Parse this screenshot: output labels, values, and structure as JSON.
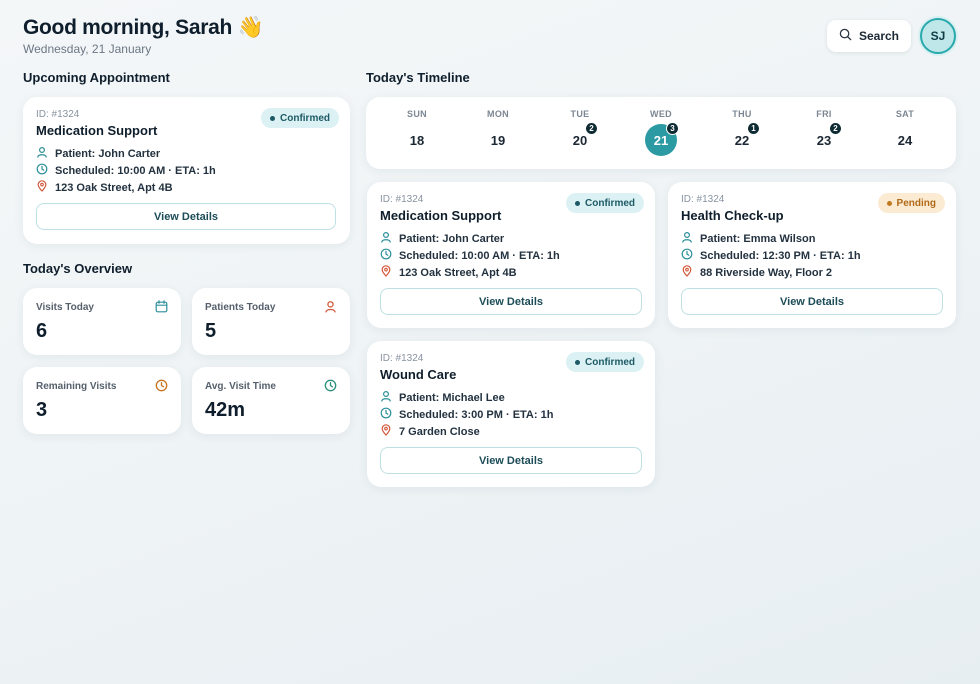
{
  "header": {
    "greeting": "Good morning, Sarah 👋",
    "date": "Wednesday, 21 January",
    "search_label": "Search",
    "avatar_initials": "SJ"
  },
  "upcoming": {
    "title": "Upcoming Appointment",
    "appointment": {
      "id": "ID: #1324",
      "title": "Medication Support",
      "status": "Confirmed",
      "patient": "Patient: John Carter",
      "scheduled": "Scheduled: 10:00 AM · ETA: 1h",
      "address": "123 Oak Street, Apt 4B",
      "button": "View Details"
    }
  },
  "overview": {
    "title": "Today's Overview",
    "stats": [
      {
        "label": "Visits Today",
        "value": "6",
        "icon": "calendar-icon",
        "color": "#2b8f9a"
      },
      {
        "label": "Patients Today",
        "value": "5",
        "icon": "user-icon",
        "color": "#d2573a"
      },
      {
        "label": "Remaining Visits",
        "value": "3",
        "icon": "clock-icon",
        "color": "#c9731f"
      },
      {
        "label": "Avg. Visit Time",
        "value": "42m",
        "icon": "clock-icon",
        "color": "#2b8f7c"
      }
    ]
  },
  "timeline": {
    "title": "Today's Timeline",
    "days": [
      {
        "name": "SUN",
        "num": "18",
        "count": ""
      },
      {
        "name": "MON",
        "num": "19",
        "count": ""
      },
      {
        "name": "TUE",
        "num": "20",
        "count": "2"
      },
      {
        "name": "WED",
        "num": "21",
        "count": "3",
        "selected": true
      },
      {
        "name": "THU",
        "num": "22",
        "count": "1"
      },
      {
        "name": "FRI",
        "num": "23",
        "count": "2"
      },
      {
        "name": "SAT",
        "num": "24",
        "count": ""
      }
    ],
    "appointments": [
      {
        "id": "ID: #1324",
        "title": "Medication Support",
        "status": "Confirmed",
        "patient": "Patient: John Carter",
        "scheduled": "Scheduled: 10:00 AM · ETA: 1h",
        "address": "123 Oak Street, Apt 4B",
        "button": "View Details"
      },
      {
        "id": "ID: #1324",
        "title": "Health Check-up",
        "status": "Pending",
        "patient": "Patient: Emma Wilson",
        "scheduled": "Scheduled: 12:30 PM · ETA: 1h",
        "address": "88 Riverside Way, Floor 2",
        "button": "View Details"
      },
      {
        "id": "ID: #1324",
        "title": "Wound Care",
        "status": "Confirmed",
        "patient": "Patient: Michael Lee",
        "scheduled": "Scheduled: 3:00 PM · ETA: 1h",
        "address": "7 Garden Close",
        "button": "View Details"
      }
    ]
  },
  "colors": {
    "accent": "#2b9aa2",
    "confirmed_bg": "#dbf1f3",
    "pending_bg": "#fcebd3",
    "location_icon": "#d2573a"
  }
}
